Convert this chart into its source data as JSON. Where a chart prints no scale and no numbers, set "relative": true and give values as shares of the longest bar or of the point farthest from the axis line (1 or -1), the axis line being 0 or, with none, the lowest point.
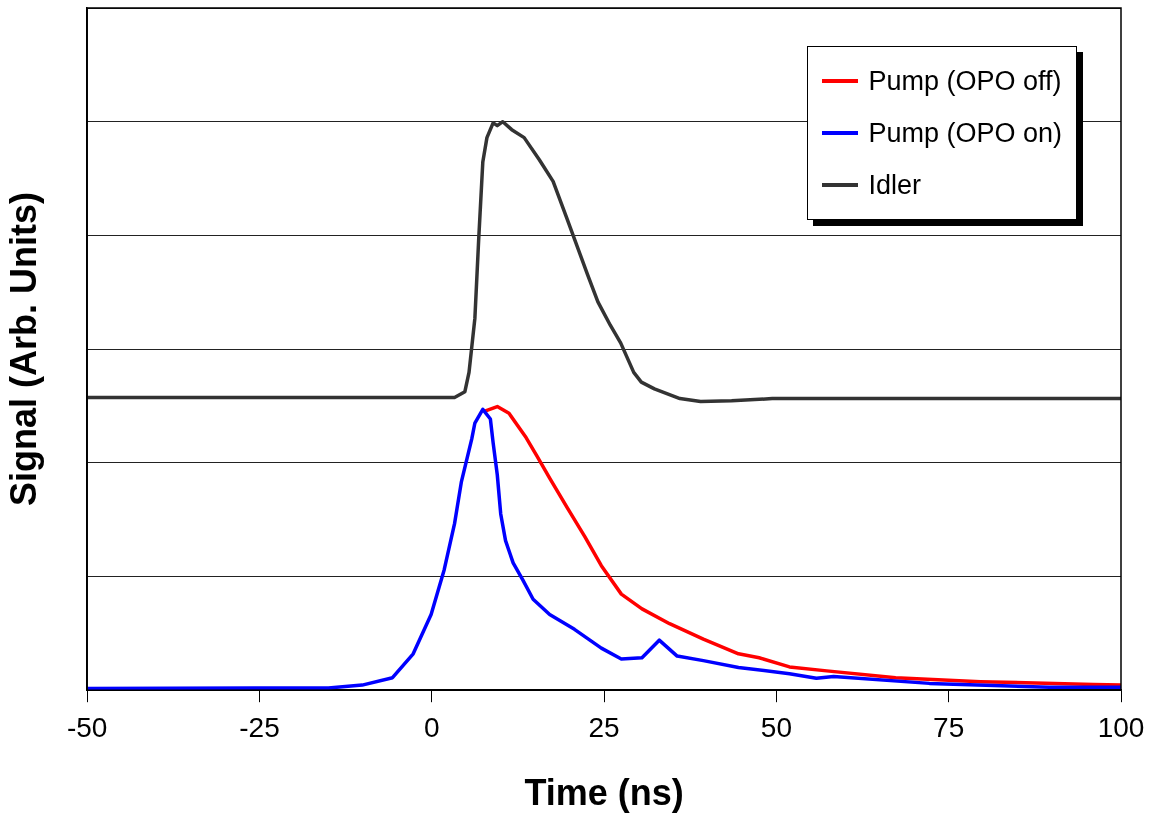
{
  "chart_data": {
    "type": "line",
    "xlabel": "Time (ns)",
    "ylabel": "Signal (Arb. Units)",
    "relative": true,
    "xlim": [
      -50,
      100
    ],
    "xticks": [
      -50,
      -25,
      0,
      25,
      50,
      75,
      100
    ],
    "grid": "y",
    "legend": "top right",
    "marker": "none",
    "line_style": "solid",
    "series": [
      {
        "name": "Pump (OPO off)",
        "color": "#ff0000",
        "x": [
          7.7,
          9.5,
          11.2,
          13.7,
          15.2,
          17.1,
          19.6,
          22.2,
          24.6,
          27.5,
          30.5,
          34.5,
          39.4,
          44.5,
          47.5,
          51.9,
          57.3,
          67.3,
          79.6,
          96.0,
          100
        ],
        "values": [
          0.491,
          0.499,
          0.487,
          0.444,
          0.413,
          0.373,
          0.322,
          0.27,
          0.219,
          0.169,
          0.143,
          0.117,
          0.09,
          0.064,
          0.057,
          0.041,
          0.034,
          0.022,
          0.015,
          0.01,
          0.009
        ]
      },
      {
        "name": "Pump (OPO on)",
        "color": "#0000ff",
        "x": [
          -50,
          -15,
          -10.1,
          -5.7,
          -2.7,
          -0.1,
          1.8,
          3.3,
          4.3,
          5.8,
          6.25,
          7.4,
          8.5,
          8.9,
          9.5,
          10.0,
          10.7,
          11.8,
          13.2,
          14.7,
          17.1,
          20.7,
          24.6,
          27.5,
          30.5,
          33.0,
          35.6,
          39.4,
          44.5,
          51.9,
          55.8,
          58.3,
          72.2,
          89.6,
          100
        ],
        "values": [
          0.003,
          0.004,
          0.009,
          0.022,
          0.064,
          0.133,
          0.212,
          0.293,
          0.367,
          0.442,
          0.47,
          0.494,
          0.477,
          0.435,
          0.379,
          0.31,
          0.263,
          0.224,
          0.194,
          0.16,
          0.133,
          0.107,
          0.074,
          0.055,
          0.057,
          0.088,
          0.06,
          0.052,
          0.04,
          0.029,
          0.021,
          0.024,
          0.012,
          0.005,
          0.005
        ]
      },
      {
        "name": "Idler",
        "color": "#333333",
        "x": [
          -50,
          3.3,
          4.8,
          5.4,
          6.25,
          6.8,
          7.4,
          8.0,
          8.9,
          9.5,
          10.3,
          11.6,
          13.4,
          15.6,
          17.6,
          19.6,
          22.6,
          24.1,
          25.9,
          27.4,
          29.3,
          30.4,
          32.3,
          36.0,
          39.0,
          43.5,
          49.4,
          67.3,
          100
        ],
        "values": [
          0.515,
          0.515,
          0.525,
          0.559,
          0.654,
          0.792,
          0.929,
          0.972,
          0.998,
          0.993,
          1.0,
          0.986,
          0.972,
          0.933,
          0.895,
          0.83,
          0.731,
          0.683,
          0.642,
          0.611,
          0.559,
          0.542,
          0.53,
          0.513,
          0.508,
          0.509,
          0.513,
          0.513,
          0.513
        ]
      }
    ]
  }
}
